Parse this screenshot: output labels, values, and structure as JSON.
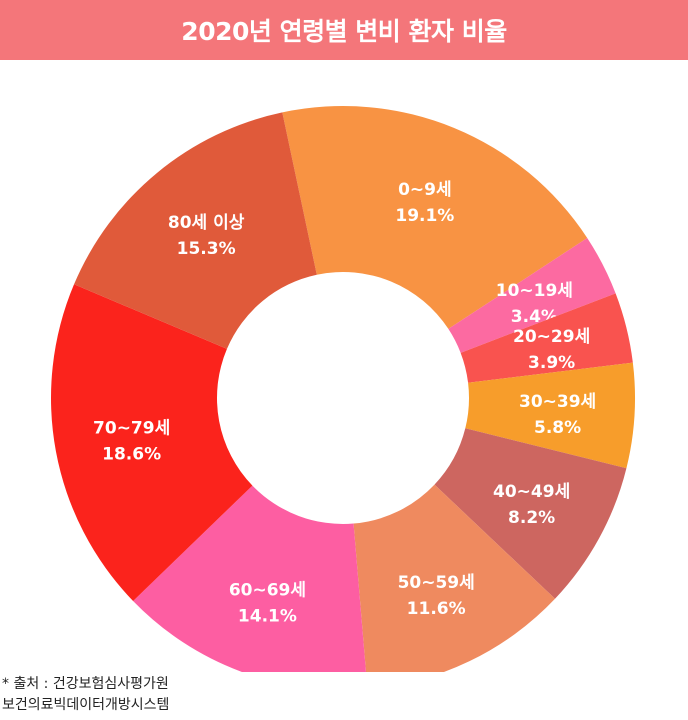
{
  "title": "2020년 연령별 변비 환자 비율",
  "source": {
    "line1": "* 출처 : 건강보험심사평가원",
    "line2": "보건의료빅데이터개방시스템"
  },
  "chart_data": {
    "type": "pie",
    "title": "2020년 연령별 변비 환자 비율",
    "slices": [
      {
        "label": "0~9세",
        "value": 19.1,
        "display": "19.1%",
        "color": "#f89343"
      },
      {
        "label": "10~19세",
        "value": 3.4,
        "display": "3.4%",
        "color": "#fc6aa1"
      },
      {
        "label": "20~29세",
        "value": 3.9,
        "display": "3.9%",
        "color": "#f9534f"
      },
      {
        "label": "30~39세",
        "value": 5.8,
        "display": "5.8%",
        "color": "#f79d2b"
      },
      {
        "label": "40~49세",
        "value": 8.2,
        "display": "8.2%",
        "color": "#cd6660"
      },
      {
        "label": "50~59세",
        "value": 11.6,
        "display": "11.6%",
        "color": "#ef8a5f"
      },
      {
        "label": "60~69세",
        "value": 14.1,
        "display": "14.1%",
        "color": "#fd5ea2"
      },
      {
        "label": "70~79세",
        "value": 18.6,
        "display": "18.6%",
        "color": "#fb231c"
      },
      {
        "label": "80세 이상",
        "value": 15.3,
        "display": "15.3%",
        "color": "#e05a3a"
      }
    ]
  }
}
